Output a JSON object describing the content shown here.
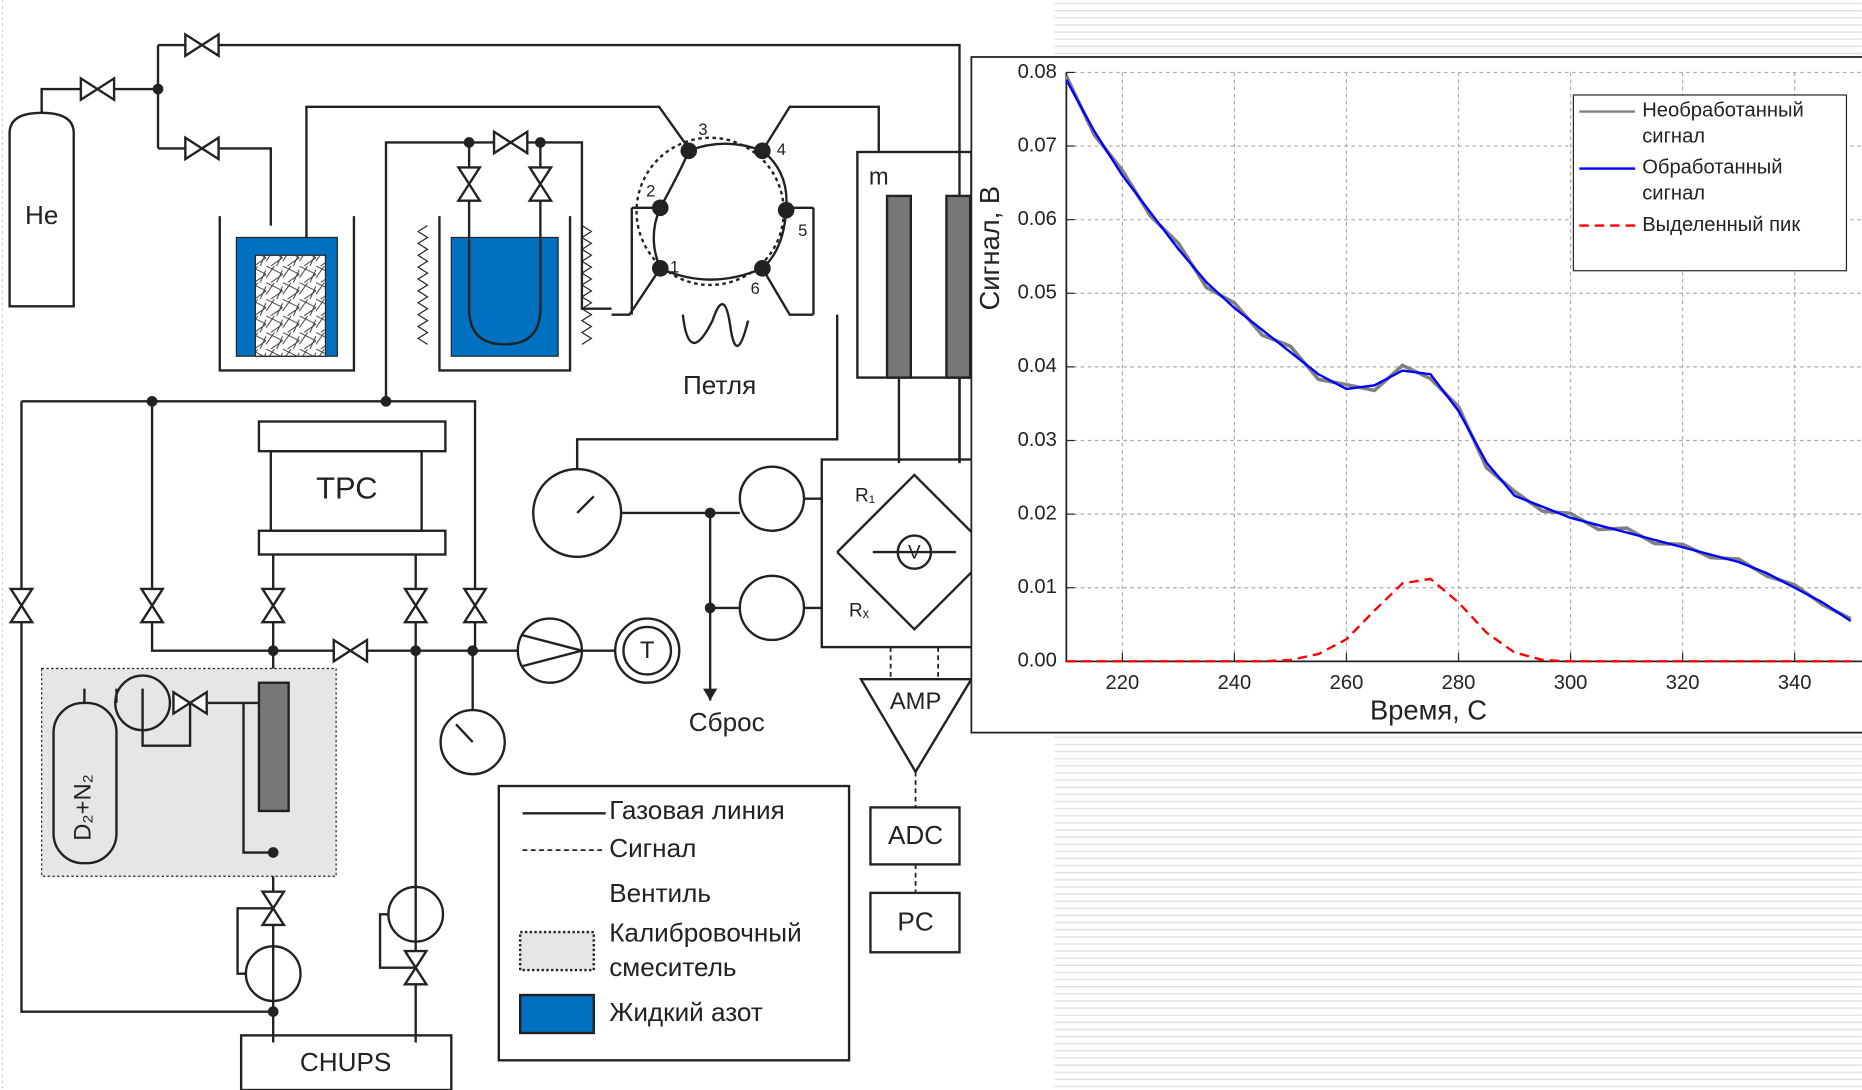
{
  "labels": {
    "he": "He",
    "tpc": "ТРС",
    "loop": "Петля",
    "dump": "Сброс",
    "m": "m",
    "chups": "CHUPS",
    "adc": "ADC",
    "pc": "PC",
    "amp": "AMP",
    "v": "V",
    "r1": "R₁",
    "rx": "Rₓ",
    "mix": "D₂+N₂",
    "t": "T"
  },
  "ports": [
    "1",
    "2",
    "3",
    "4",
    "5",
    "6"
  ],
  "legend": {
    "gas": "Газовая линия",
    "signal": "Сигнал",
    "valve": "Вентиль",
    "mixer": [
      "Калибровочный",
      "смеситель"
    ],
    "nitrogen": "Жидкий азот"
  },
  "chart_data": {
    "type": "line",
    "x_label": "Время, С",
    "y_label": "Сигнал, В",
    "x": [
      210,
      215,
      220,
      225,
      230,
      235,
      240,
      245,
      250,
      255,
      260,
      265,
      270,
      275,
      280,
      285,
      290,
      295,
      300,
      305,
      310,
      315,
      320,
      325,
      330,
      335,
      340,
      345,
      350
    ],
    "series": [
      {
        "name": "Необработанный сигнал",
        "color": "#808080",
        "values": [
          0.0795,
          0.0715,
          0.0667,
          0.0605,
          0.0568,
          0.0508,
          0.0487,
          0.0443,
          0.0428,
          0.0383,
          0.0376,
          0.0368,
          0.0402,
          0.0384,
          0.0346,
          0.0263,
          0.0231,
          0.0204,
          0.0201,
          0.0179,
          0.0181,
          0.016,
          0.0159,
          0.0141,
          0.0139,
          0.0116,
          0.0104,
          0.0077,
          0.0058
        ]
      },
      {
        "name": "Обработанный сигнал",
        "color": "#0000ff",
        "values": [
          0.079,
          0.072,
          0.066,
          0.061,
          0.056,
          0.0515,
          0.048,
          0.045,
          0.042,
          0.039,
          0.037,
          0.0375,
          0.0395,
          0.039,
          0.034,
          0.027,
          0.0225,
          0.021,
          0.0195,
          0.0185,
          0.0175,
          0.0165,
          0.0155,
          0.0145,
          0.0135,
          0.012,
          0.01,
          0.008,
          0.0055
        ]
      },
      {
        "name": "Выделенный пик",
        "color": "#ff0000",
        "linestyle": "dashed",
        "values": [
          0,
          0,
          0,
          0,
          0,
          0,
          0,
          0,
          0.0002,
          0.001,
          0.003,
          0.0069,
          0.0106,
          0.0112,
          0.008,
          0.0039,
          0.0012,
          0.0002,
          0,
          0,
          0,
          0,
          0,
          0,
          0,
          0,
          0,
          0,
          0
        ]
      }
    ],
    "xlim": [
      210,
      352
    ],
    "ylim": [
      0,
      0.08
    ],
    "xticks": [
      220,
      240,
      260,
      280,
      300,
      320,
      340
    ],
    "yticks": [
      {
        "value": 0,
        "label": "0.00"
      },
      {
        "value": 0.01,
        "label": "0.01"
      },
      {
        "value": 0.02,
        "label": "0.02"
      },
      {
        "value": 0.03,
        "label": "0.03"
      },
      {
        "value": 0.04,
        "label": "0.04"
      },
      {
        "value": 0.05,
        "label": "0.05"
      },
      {
        "value": 0.06,
        "label": "0.06"
      },
      {
        "value": 0.07,
        "label": "0.07"
      },
      {
        "value": 0.08,
        "label": "0.08"
      }
    ],
    "grid": true,
    "legend": "upper right"
  }
}
